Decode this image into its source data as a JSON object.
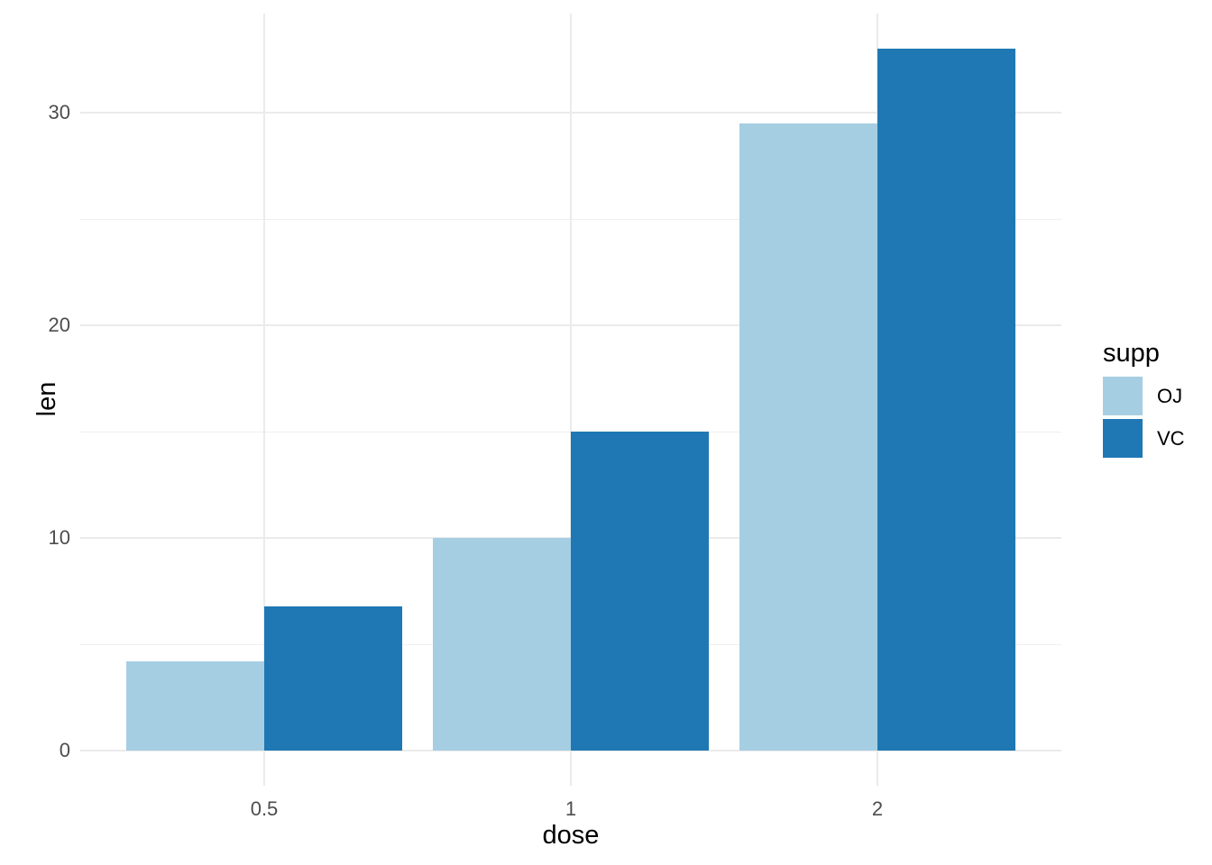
{
  "chart_data": {
    "type": "bar",
    "title": "",
    "categories": [
      "0.5",
      "1",
      "2"
    ],
    "series": [
      {
        "name": "OJ",
        "color": "#A6CEE3",
        "values": [
          4.2,
          10,
          29.5
        ]
      },
      {
        "name": "VC",
        "color": "#1F78B4",
        "values": [
          6.8,
          15,
          33
        ]
      }
    ],
    "xlabel": "dose",
    "ylabel": "len",
    "legend_title": "supp",
    "legend_position": "right",
    "bar_layout": "dodged",
    "ylim": [
      -1.65,
      34.65
    ],
    "y_major_ticks": [
      0,
      10,
      20,
      30
    ],
    "y_tick_labels": [
      "0",
      "10",
      "20",
      "30"
    ],
    "y_minor_ticks": [
      5,
      15,
      25
    ],
    "grid": true,
    "colors": {
      "background": "#FFFFFF",
      "gridline_major": "#EBEBEB",
      "gridline_minor": "#EFEFEF",
      "tick_label": "#4D4D4D",
      "axis_title": "#000000"
    }
  }
}
